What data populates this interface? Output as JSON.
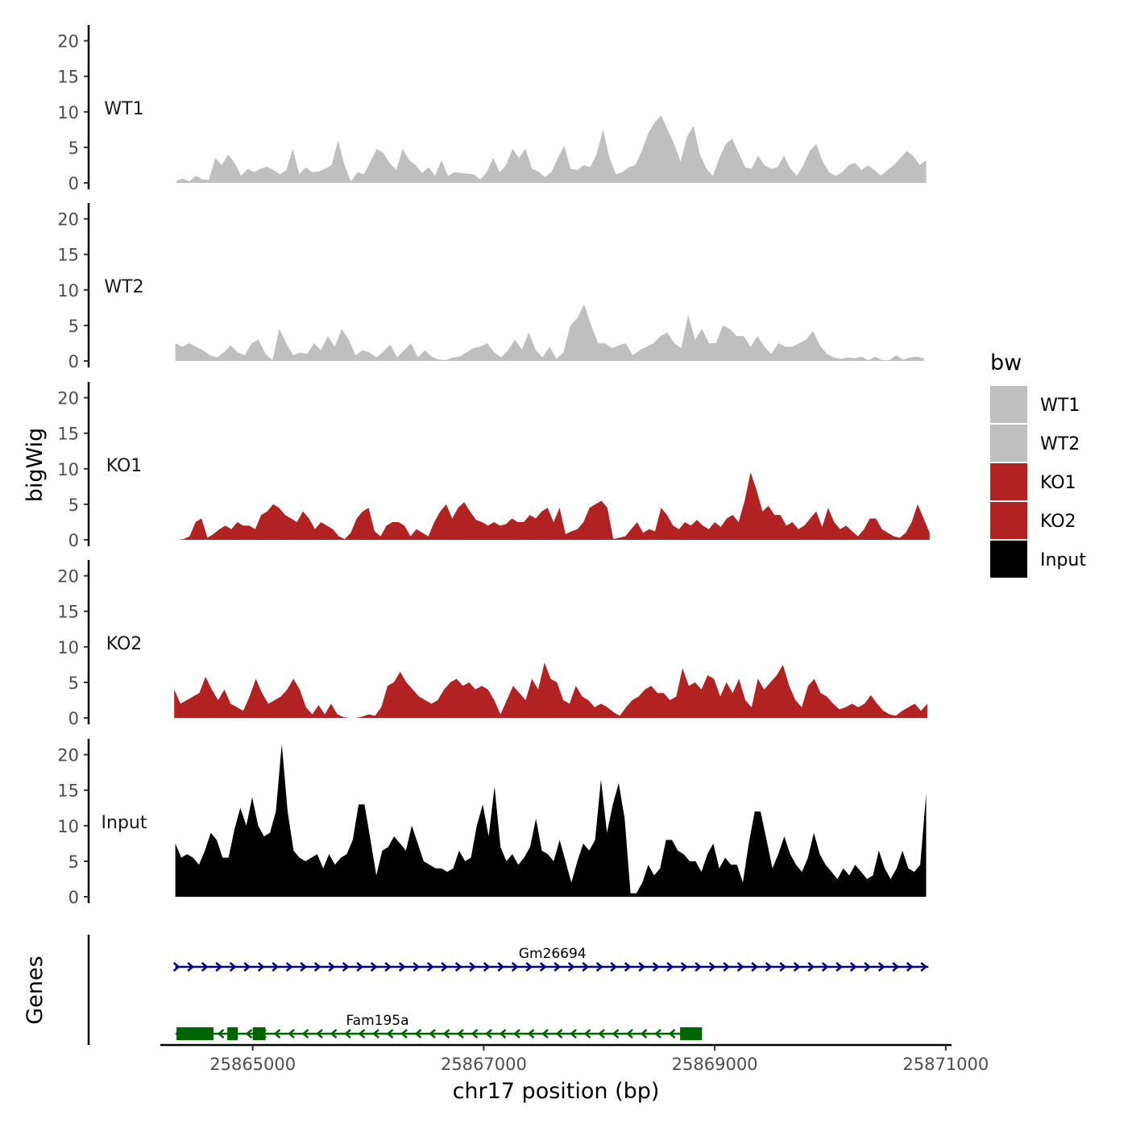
{
  "chart_data": {
    "type": "area",
    "ylabel": "bigWig",
    "xlabel": "chr17 position (bp)",
    "ylim": [
      0,
      22
    ],
    "y_ticks": [
      0,
      5,
      10,
      15,
      20
    ],
    "xlim": [
      25864200,
      25871050
    ],
    "x_ticks": [
      25865000,
      25867000,
      25869000,
      25871000
    ],
    "legend": {
      "title": "bw",
      "entries": [
        {
          "name": "WT1",
          "color": "#bfbfbf"
        },
        {
          "name": "WT2",
          "color": "#bfbfbf"
        },
        {
          "name": "KO1",
          "color": "#b22222"
        },
        {
          "name": "KO2",
          "color": "#b22222"
        },
        {
          "name": "Input",
          "color": "#000000"
        }
      ]
    },
    "series": [
      {
        "name": "WT1",
        "color": "#bfbfbf",
        "x_start": 25864340,
        "x_end": 25870830,
        "values": [
          0.3,
          0.6,
          0.2,
          1.0,
          0.5,
          0.4,
          3.5,
          2.5,
          4.0,
          2.8,
          1.0,
          2.0,
          1.5,
          2.0,
          2.3,
          1.8,
          1.2,
          1.8,
          4.8,
          1.2,
          2.2,
          1.5,
          1.6,
          2.0,
          2.5,
          6.0,
          2.5,
          0.2,
          1.5,
          1.2,
          3.0,
          4.8,
          4.2,
          2.8,
          1.8,
          4.8,
          3.2,
          2.5,
          1.4,
          2.2,
          1.0,
          3.2,
          1.0,
          1.5,
          1.4,
          1.3,
          1.2,
          0.5,
          1.5,
          3.5,
          1.5,
          2.5,
          4.8,
          3.5,
          4.8,
          2.0,
          1.6,
          0.8,
          1.5,
          3.5,
          5.2,
          2.0,
          1.8,
          2.5,
          2.2,
          4.0,
          7.5,
          3.5,
          1.2,
          1.5,
          2.2,
          2.5,
          4.5,
          7.0,
          8.5,
          9.5,
          7.5,
          5.5,
          3.0,
          6.5,
          8.0,
          4.0,
          2.0,
          1.0,
          3.5,
          5.5,
          6.2,
          4.2,
          2.2,
          2.0,
          3.8,
          2.5,
          2.0,
          2.2,
          3.8,
          2.0,
          1.0,
          2.5,
          4.5,
          5.5,
          3.0,
          1.5,
          1.0,
          1.5,
          2.5,
          2.8,
          1.8,
          2.5,
          1.8,
          1.0,
          1.8,
          2.5,
          3.5,
          4.5,
          3.8,
          2.5,
          3.2
        ]
      },
      {
        "name": "WT2",
        "color": "#bfbfbf",
        "x_start": 25864330,
        "x_end": 25870810,
        "values": [
          2.5,
          2.0,
          2.5,
          2.0,
          1.5,
          0.8,
          0.5,
          1.2,
          2.2,
          1.2,
          0.8,
          2.5,
          3.0,
          1.0,
          0.1,
          4.5,
          2.5,
          0.8,
          1.2,
          1.0,
          2.5,
          1.5,
          3.5,
          2.0,
          4.5,
          3.0,
          0.8,
          1.5,
          1.2,
          0.5,
          1.3,
          2.3,
          0.5,
          1.5,
          2.5,
          0.5,
          1.5,
          0.6,
          0.2,
          0.1,
          0.5,
          0.6,
          1.2,
          1.8,
          2.0,
          2.5,
          1.2,
          0.5,
          1.5,
          3.0,
          1.6,
          4.0,
          1.5,
          0.5,
          2.0,
          0.3,
          1.2,
          5.0,
          6.0,
          8.0,
          5.0,
          2.5,
          2.5,
          1.8,
          2.2,
          2.5,
          0.8,
          1.5,
          2.0,
          2.5,
          3.5,
          4.0,
          2.5,
          1.8,
          6.5,
          3.0,
          4.5,
          2.5,
          2.5,
          5.0,
          4.5,
          3.5,
          3.5,
          2.0,
          3.5,
          2.0,
          1.0,
          2.5,
          2.0,
          2.0,
          2.5,
          3.0,
          4.2,
          2.2,
          1.0,
          0.5,
          0.3,
          0.5,
          0.4,
          0.6,
          0.1,
          0.6,
          0.1,
          0.1,
          0.8,
          0.2,
          0.5,
          0.6,
          0.4
        ]
      },
      {
        "name": "KO1",
        "color": "#b22222",
        "x_start": 25864350,
        "x_end": 25870860,
        "values": [
          0.0,
          0.1,
          0.5,
          2.5,
          3.0,
          0.3,
          0.8,
          1.5,
          2.0,
          1.5,
          2.5,
          2.0,
          2.0,
          1.5,
          3.5,
          4.0,
          5.0,
          4.5,
          3.5,
          3.0,
          2.5,
          4.0,
          3.0,
          1.5,
          2.5,
          2.0,
          1.5,
          0.5,
          0.1,
          1.0,
          3.0,
          4.0,
          4.5,
          1.2,
          0.5,
          2.0,
          2.5,
          2.5,
          2.0,
          0.5,
          1.5,
          1.0,
          0.5,
          2.5,
          4.0,
          5.0,
          3.0,
          4.5,
          5.3,
          4.0,
          2.8,
          2.5,
          2.0,
          2.5,
          2.0,
          2.2,
          3.0,
          2.5,
          2.5,
          3.5,
          3.0,
          4.0,
          4.5,
          2.5,
          4.5,
          0.8,
          1.2,
          1.5,
          2.5,
          4.5,
          5.0,
          5.5,
          4.5,
          0.1,
          0.3,
          0.5,
          1.5,
          2.5,
          1.0,
          1.5,
          1.2,
          4.5,
          3.5,
          2.0,
          1.5,
          2.5,
          2.0,
          2.8,
          2.0,
          1.5,
          2.5,
          1.8,
          3.0,
          3.5,
          2.5,
          5.5,
          9.5,
          7.0,
          4.0,
          4.8,
          3.5,
          3.5,
          2.0,
          2.5,
          1.5,
          2.0,
          3.0,
          4.0,
          1.8,
          4.5,
          2.5,
          1.5,
          2.0,
          1.2,
          0.5,
          1.5,
          3.0,
          3.0,
          1.5,
          1.0,
          0.5,
          0.3,
          1.0,
          2.5,
          5.0,
          3.0,
          1.0
        ]
      },
      {
        "name": "KO2",
        "color": "#b22222",
        "x_start": 25864320,
        "x_end": 25870840,
        "values": [
          4.0,
          2.0,
          2.5,
          3.0,
          3.5,
          5.8,
          4.0,
          2.5,
          4.0,
          2.0,
          1.5,
          1.0,
          3.0,
          5.5,
          3.5,
          2.0,
          2.5,
          3.0,
          4.0,
          5.5,
          4.0,
          1.5,
          0.5,
          1.8,
          0.5,
          2.0,
          0.5,
          0.1,
          0.0,
          0.0,
          0.2,
          0.5,
          0.3,
          1.5,
          4.5,
          5.0,
          6.5,
          5.0,
          4.0,
          3.0,
          2.5,
          2.0,
          2.5,
          4.0,
          5.0,
          5.5,
          4.5,
          5.0,
          4.0,
          4.5,
          4.0,
          2.5,
          0.5,
          2.5,
          4.5,
          3.5,
          2.5,
          5.5,
          4.0,
          7.8,
          5.5,
          5.0,
          2.5,
          2.0,
          4.5,
          3.0,
          2.5,
          1.5,
          2.0,
          1.5,
          0.8,
          0.3,
          1.5,
          2.5,
          3.0,
          4.0,
          4.5,
          3.5,
          3.5,
          2.5,
          3.0,
          7.0,
          4.5,
          5.0,
          4.0,
          6.0,
          5.5,
          3.0,
          5.0,
          3.5,
          5.5,
          2.5,
          1.5,
          5.5,
          4.0,
          5.0,
          6.0,
          7.5,
          4.5,
          2.5,
          1.5,
          4.5,
          5.5,
          3.5,
          3.0,
          2.0,
          1.2,
          1.5,
          2.0,
          1.5,
          2.0,
          3.2,
          2.0,
          1.0,
          0.5,
          0.3,
          1.0,
          1.5,
          2.0,
          1.0,
          2.0
        ]
      },
      {
        "name": "Input",
        "color": "#000000",
        "x_start": 25864330,
        "x_end": 25870830,
        "values": [
          7.5,
          5.5,
          6.0,
          5.5,
          4.5,
          6.5,
          9.0,
          8.0,
          5.5,
          5.5,
          9.5,
          12.5,
          10.0,
          14.0,
          10.0,
          8.5,
          9.0,
          12.0,
          21.5,
          12.0,
          6.5,
          5.5,
          5.0,
          5.5,
          6.0,
          4.0,
          6.0,
          4.5,
          5.5,
          6.0,
          8.0,
          13.0,
          13.0,
          8.0,
          3.0,
          6.5,
          7.0,
          8.5,
          7.5,
          6.5,
          10.0,
          7.5,
          5.0,
          4.5,
          4.0,
          4.0,
          3.5,
          4.0,
          6.5,
          5.0,
          5.5,
          10.0,
          13.0,
          8.5,
          15.5,
          7.0,
          5.0,
          6.0,
          4.5,
          5.5,
          7.0,
          11.0,
          6.5,
          6.0,
          5.0,
          8.0,
          5.0,
          2.0,
          5.0,
          7.5,
          6.5,
          8.0,
          16.5,
          9.0,
          13.0,
          16.0,
          11.0,
          0.5,
          0.5,
          2.0,
          4.5,
          3.0,
          4.0,
          8.0,
          8.0,
          6.5,
          6.0,
          5.0,
          5.0,
          3.5,
          6.0,
          7.5,
          4.0,
          5.5,
          4.5,
          4.5,
          2.0,
          7.5,
          12.0,
          12.0,
          8.0,
          4.0,
          6.0,
          8.5,
          6.0,
          4.5,
          3.5,
          5.5,
          9.0,
          6.0,
          4.5,
          3.5,
          2.5,
          4.0,
          3.0,
          4.5,
          3.5,
          2.5,
          3.0,
          6.5,
          4.0,
          2.5,
          4.0,
          6.5,
          4.0,
          3.5,
          4.5,
          14.5
        ]
      }
    ],
    "genes_track": {
      "label": "Genes",
      "genes": [
        {
          "name": "Gm26694",
          "strand": "+",
          "color": "#00008b",
          "start": 25864330,
          "end": 25870850,
          "exons": []
        },
        {
          "name": "Fam195a",
          "strand": "-",
          "color": "#006400",
          "start": 25864340,
          "end": 25868850,
          "exons": [
            [
              25864340,
              25864660
            ],
            [
              25864780,
              25864870
            ],
            [
              25865000,
              25865110
            ],
            [
              25868700,
              25868820
            ],
            [
              25868790,
              25868890
            ]
          ]
        }
      ]
    }
  }
}
